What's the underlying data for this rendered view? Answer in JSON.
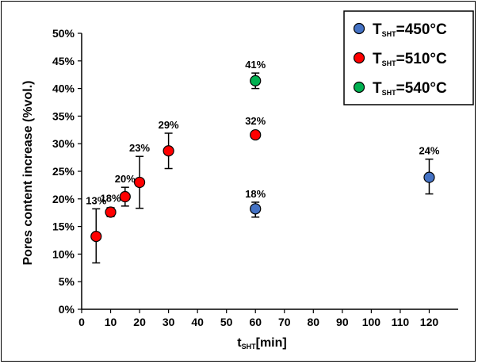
{
  "chart_data": {
    "type": "scatter",
    "title": "",
    "xlabel": {
      "main": "t",
      "sub": "SHT",
      "unit": "[min]"
    },
    "ylabel": "Pores content increase (%vol.)",
    "xlim": [
      0,
      130
    ],
    "ylim": [
      0,
      50
    ],
    "x_ticks": [
      "0",
      "10",
      "20",
      "30",
      "40",
      "50",
      "60",
      "70",
      "80",
      "90",
      "100",
      "110",
      "120"
    ],
    "y_ticks": [
      "0%",
      "5%",
      "10%",
      "15%",
      "20%",
      "25%",
      "30%",
      "35%",
      "40%",
      "45%",
      "50%"
    ],
    "grid": false,
    "legend_position": "top-right",
    "series": [
      {
        "name": "T_SHT=450°C",
        "legend": {
          "main": "T",
          "sub": "SHT",
          "rest": "=450°C"
        },
        "color": "#4472C4",
        "points": [
          {
            "x": 60,
            "y": 18.2,
            "err_low": 1.5,
            "err_high": 1.2,
            "label": "18%"
          },
          {
            "x": 120,
            "y": 23.9,
            "err_low": 3.0,
            "err_high": 3.3,
            "label": "24%"
          }
        ]
      },
      {
        "name": "T_SHT=510°C",
        "legend": {
          "main": "T",
          "sub": "SHT",
          "rest": "=510°C"
        },
        "color": "#FF0000",
        "points": [
          {
            "x": 5,
            "y": 13.2,
            "err_low": 4.8,
            "err_high": 5.0,
            "label": "13%"
          },
          {
            "x": 10,
            "y": 17.6,
            "err_low": 0.8,
            "err_high": 0.8,
            "label": "18%"
          },
          {
            "x": 15,
            "y": 20.4,
            "err_low": 1.7,
            "err_high": 1.7,
            "label": "20%"
          },
          {
            "x": 20,
            "y": 23.0,
            "err_low": 4.7,
            "err_high": 4.7,
            "label": "23%"
          },
          {
            "x": 30,
            "y": 28.7,
            "err_low": 3.2,
            "err_high": 3.2,
            "label": "29%"
          },
          {
            "x": 60,
            "y": 31.6,
            "err_low": 0.5,
            "err_high": 0.5,
            "label": "32%"
          }
        ]
      },
      {
        "name": "T_SHT=540°C",
        "legend": {
          "main": "T",
          "sub": "SHT",
          "rest": "=540°C"
        },
        "color": "#00B050",
        "points": [
          {
            "x": 60,
            "y": 41.4,
            "err_low": 1.4,
            "err_high": 1.4,
            "label": "41%"
          }
        ]
      }
    ]
  }
}
